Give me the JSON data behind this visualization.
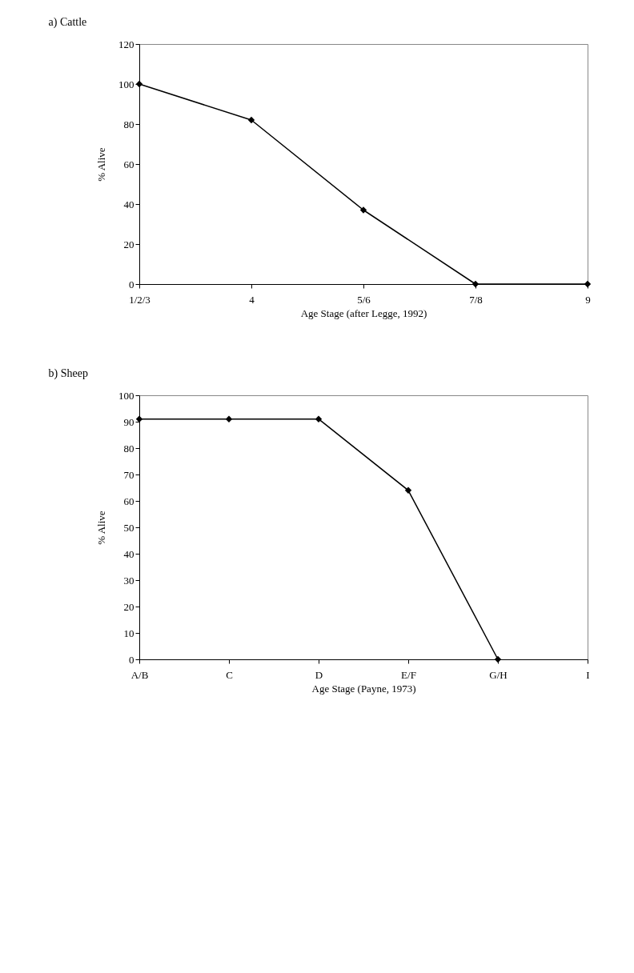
{
  "chart_data": [
    {
      "type": "line",
      "title": "a) Cattle",
      "xlabel": "Age Stage (after Legge, 1992)",
      "ylabel": "% Alive",
      "categories": [
        "1/2/3",
        "4",
        "5/6",
        "7/8",
        "9"
      ],
      "series": [
        {
          "color": "#000000",
          "values": [
            100,
            82,
            37,
            0,
            0
          ]
        }
      ],
      "ylim": [
        0,
        120
      ],
      "yticks": [
        0,
        20,
        40,
        60,
        80,
        100,
        120
      ],
      "grid": false,
      "marker": "diamond",
      "line_style": "solid"
    },
    {
      "type": "line",
      "title": "b) Sheep",
      "xlabel": "Age Stage (Payne, 1973)",
      "ylabel": "% Alive",
      "categories": [
        "A/B",
        "C",
        "D",
        "E/F",
        "G/H",
        "I"
      ],
      "series": [
        {
          "color": "#000000",
          "values": [
            91,
            91,
            91,
            64,
            0,
            null
          ]
        }
      ],
      "ylim": [
        0,
        100
      ],
      "yticks": [
        0,
        10,
        20,
        30,
        40,
        50,
        60,
        70,
        80,
        90,
        100
      ],
      "grid": false,
      "marker": "diamond",
      "line_style": "solid"
    }
  ]
}
